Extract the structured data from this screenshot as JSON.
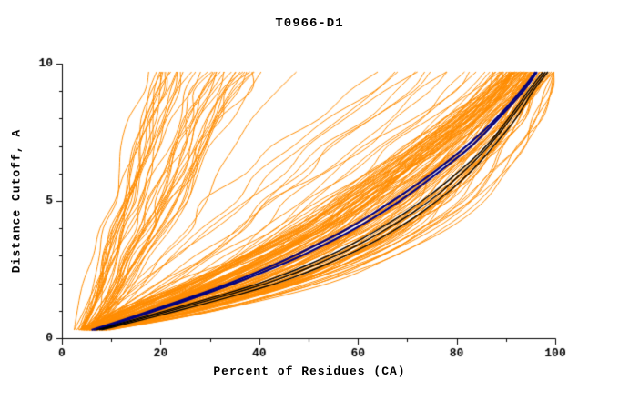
{
  "figure": {
    "title": "T0966-D1",
    "xlabel": "Percent of Residues (CA)",
    "ylabel": "Distance Cutoff, A"
  },
  "chart_data": {
    "type": "line",
    "title": "T0966-D1",
    "xlabel": "Percent of Residues (CA)",
    "ylabel": "Distance Cutoff, A",
    "xlim": [
      0,
      100
    ],
    "ylim": [
      0,
      10
    ],
    "x_major_ticks": [
      0,
      20,
      40,
      60,
      80,
      100
    ],
    "x_minor_step": 10,
    "y_major_ticks": [
      0,
      5,
      10
    ],
    "y_minor_step": 1,
    "grid": false,
    "legend": "none",
    "background": "#ffffff",
    "axis_color": "#000000",
    "cutoff_levels": [
      0.3,
      1,
      2,
      3,
      4,
      5,
      6,
      7,
      8,
      9,
      9.7
    ],
    "series_groups": [
      {
        "name": "server-models-good-cluster",
        "color": "#ff8c00",
        "count": 90,
        "seed": 101,
        "width": 1,
        "jitter": 2,
        "envelope_low": [
          4,
          11,
          24,
          36,
          46,
          55,
          63,
          71,
          79,
          86,
          90
        ],
        "envelope_high": [
          9,
          30,
          52,
          66,
          76,
          83,
          88,
          92,
          95,
          97.5,
          99
        ]
      },
      {
        "name": "server-models-poor-cluster",
        "color": "#ff8c00",
        "count": 40,
        "seed": 202,
        "width": 1,
        "jitter": 1.8,
        "envelope_low": [
          3,
          4.5,
          6,
          7.5,
          9,
          10.5,
          12,
          13.5,
          15,
          16.5,
          17.5
        ],
        "envelope_high": [
          7,
          11,
          15,
          19,
          23,
          27,
          30,
          33,
          36,
          40,
          43
        ]
      },
      {
        "name": "server-models-intermediate",
        "color": "#ff8c00",
        "count": 25,
        "seed": 303,
        "width": 1,
        "jitter": 3,
        "envelope_low": [
          3.5,
          8,
          14,
          20,
          26,
          32,
          39,
          46,
          54,
          62,
          67
        ],
        "envelope_high": [
          8,
          20,
          33,
          44,
          54,
          62,
          70,
          77,
          84,
          90,
          93
        ]
      }
    ],
    "highlight_series": [
      {
        "name": "reference-model-navy-1",
        "color": "#000080",
        "width": 2.2,
        "x_at_cutoff": [
          6,
          18,
          34,
          47,
          58,
          67,
          75,
          82,
          88,
          93,
          96
        ]
      },
      {
        "name": "reference-model-navy-2",
        "color": "#000080",
        "width": 2.2,
        "x_at_cutoff": [
          6.5,
          19,
          35,
          48.5,
          59.5,
          68.5,
          76,
          83,
          88.5,
          93.5,
          96.3
        ]
      },
      {
        "name": "reference-model-black-1",
        "color": "#000000",
        "width": 1.4,
        "x_at_cutoff": [
          7,
          21,
          40,
          54,
          64.5,
          73,
          80,
          86,
          90.5,
          94.5,
          97.5
        ]
      },
      {
        "name": "reference-model-black-2",
        "color": "#000000",
        "width": 1.4,
        "x_at_cutoff": [
          7.5,
          22,
          41.5,
          55.5,
          66,
          74.5,
          81,
          86.5,
          91,
          95,
          98
        ]
      },
      {
        "name": "reference-model-black-3",
        "color": "#000000",
        "width": 1.4,
        "x_at_cutoff": [
          8,
          23.5,
          43.5,
          57.5,
          68,
          76,
          82.5,
          87.5,
          92,
          95.5,
          98.5
        ]
      }
    ]
  }
}
